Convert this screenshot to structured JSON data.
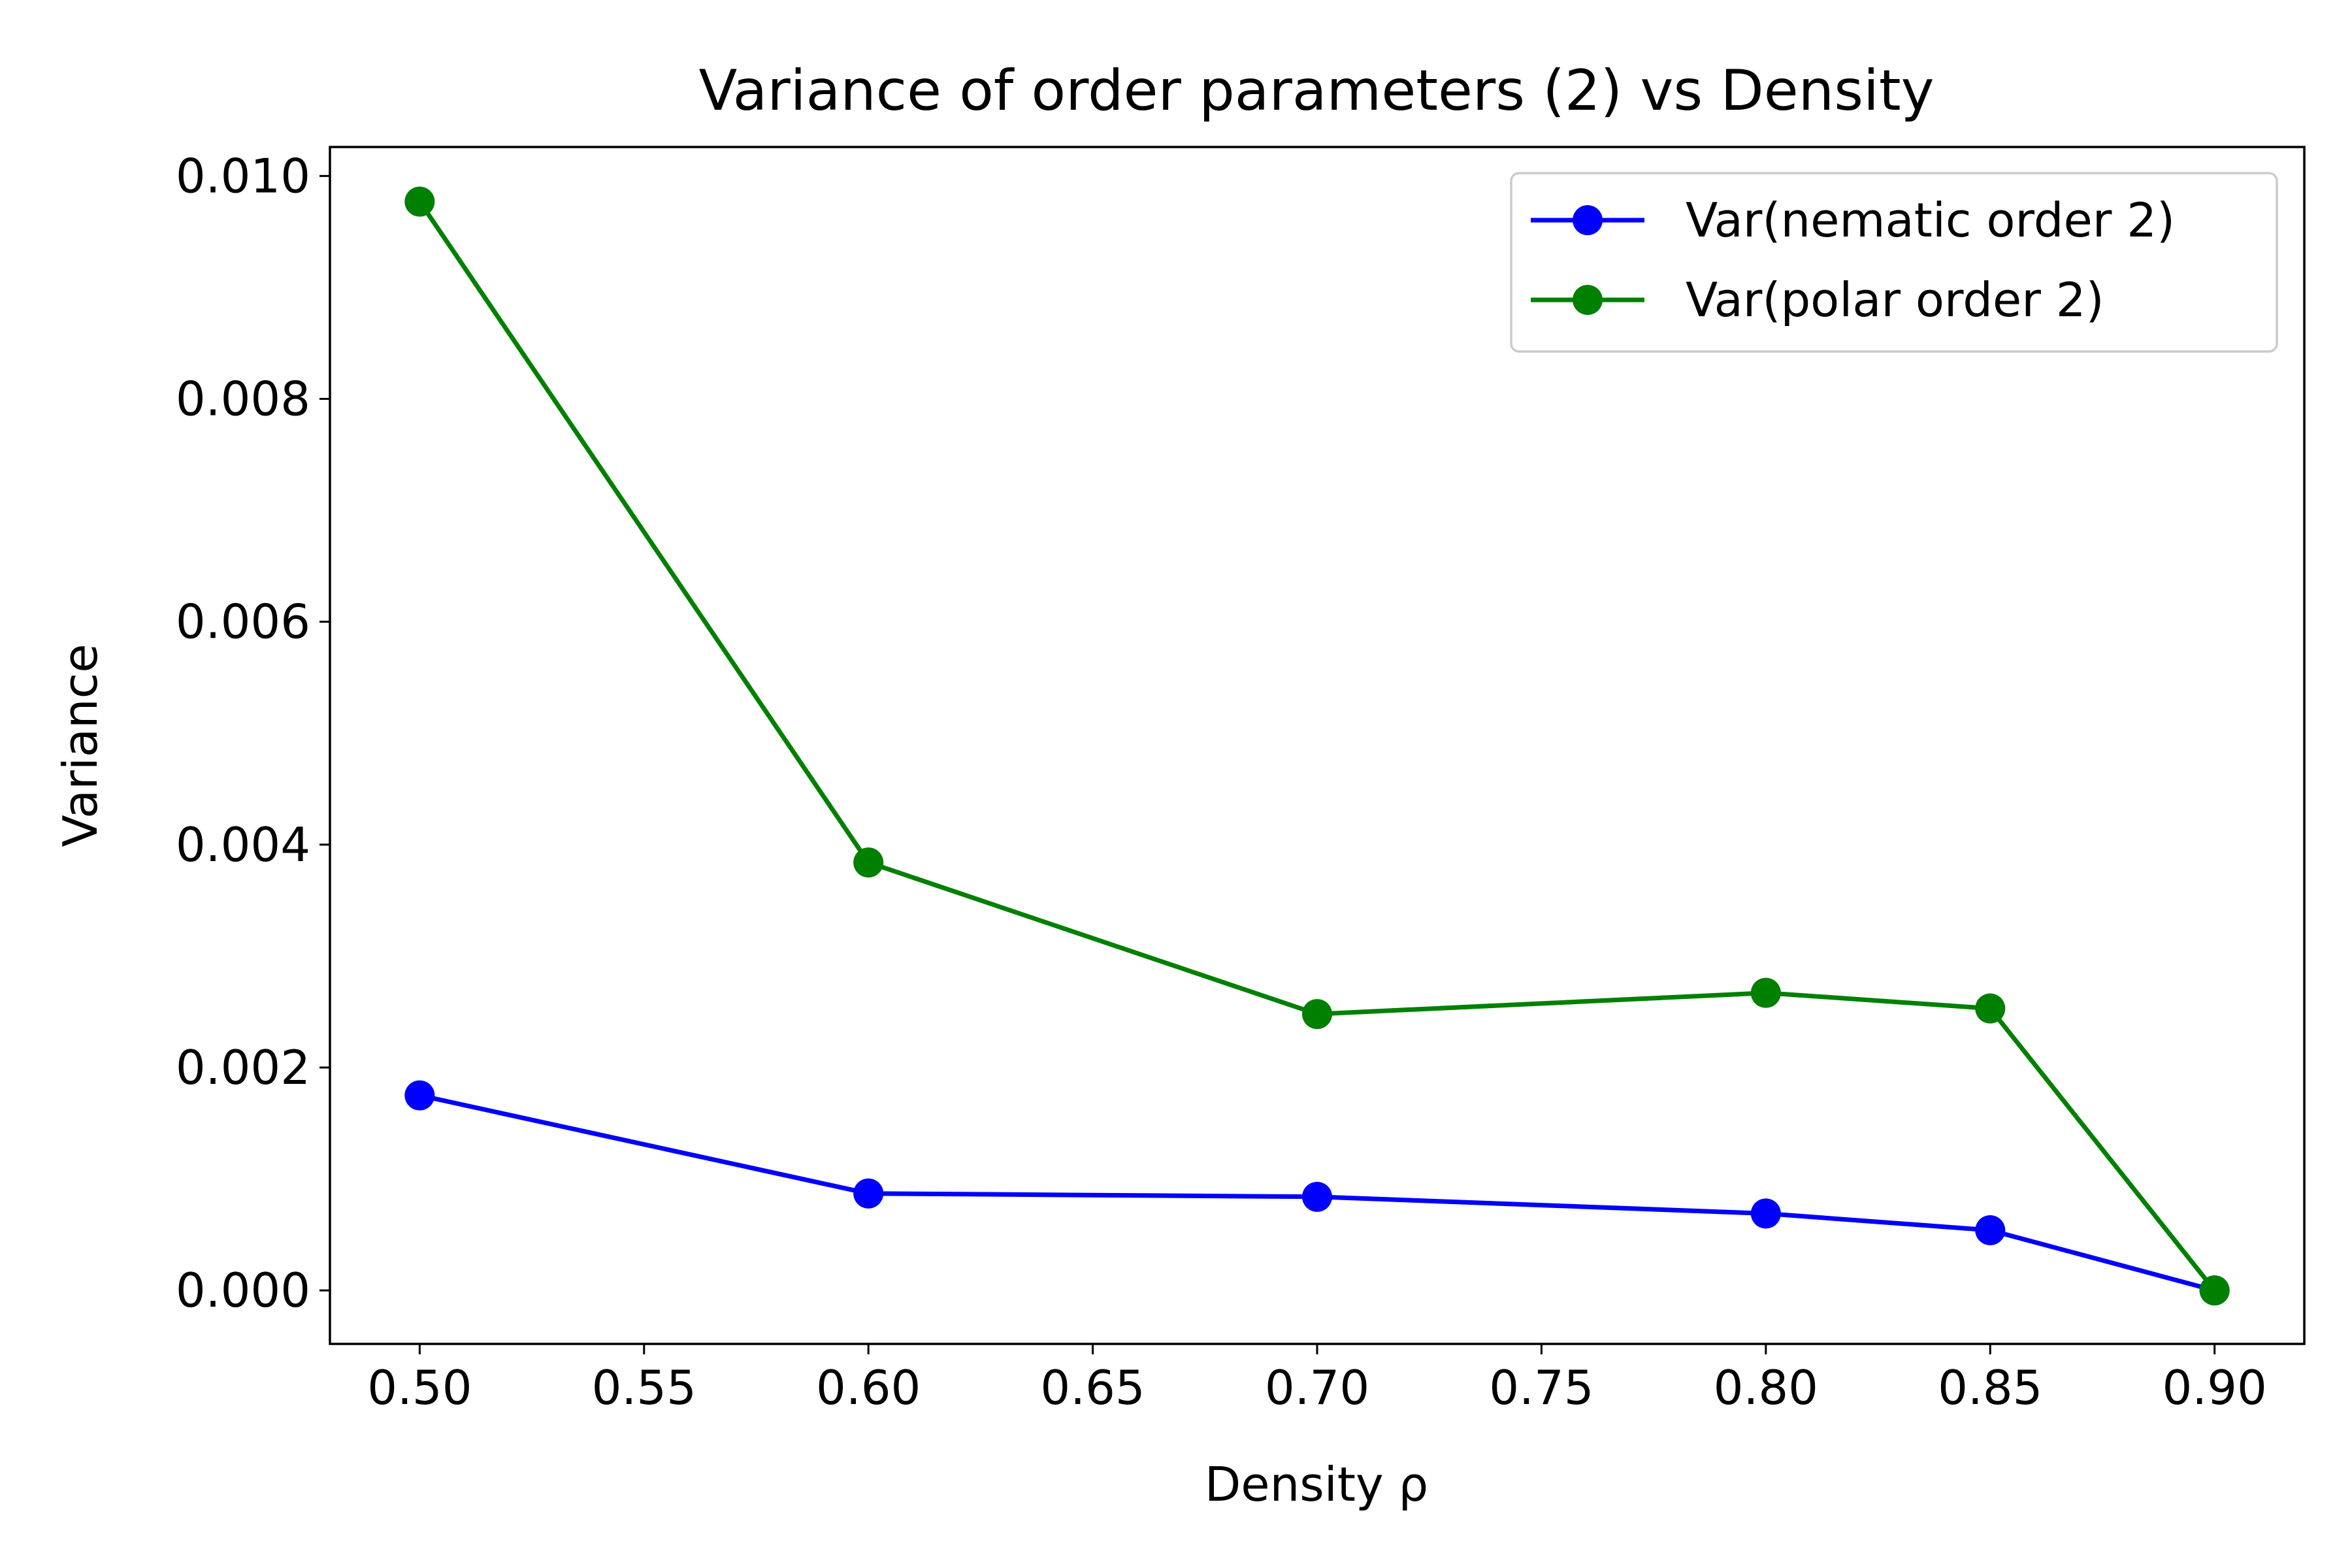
{
  "chart_data": {
    "type": "line",
    "title": "Variance of order parameters (2) vs Density",
    "xlabel": "Density ρ",
    "ylabel": "Variance",
    "x": [
      0.5,
      0.6,
      0.7,
      0.8,
      0.85,
      0.9
    ],
    "xlim": [
      0.48,
      0.92
    ],
    "ylim": [
      -0.00048,
      0.01026
    ],
    "xticks": [
      "0.50",
      "0.55",
      "0.60",
      "0.65",
      "0.70",
      "0.75",
      "0.80",
      "0.85",
      "0.90"
    ],
    "yticks": [
      "0.000",
      "0.002",
      "0.004",
      "0.006",
      "0.008",
      "0.010"
    ],
    "grid": false,
    "legend_position": "top-right",
    "series": [
      {
        "name": "Var(nematic order 2)",
        "color": "#0000ff",
        "marker": "circle",
        "values": [
          0.00175,
          0.00087,
          0.00084,
          0.00069,
          0.00054,
          0.0
        ]
      },
      {
        "name": "Var(polar order 2)",
        "color": "#008000",
        "marker": "circle",
        "values": [
          0.00977,
          0.00384,
          0.00248,
          0.00267,
          0.00253,
          0.0
        ]
      }
    ]
  }
}
